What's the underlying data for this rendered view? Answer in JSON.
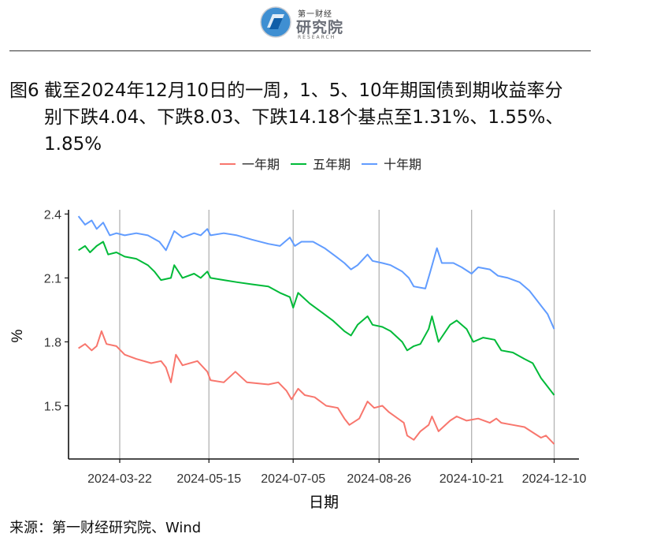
{
  "header": {
    "logo_small": "第一财经",
    "logo_main": "研究院",
    "logo_sub": "RESEARCH"
  },
  "figure": {
    "label": "图6",
    "title_lines": [
      "截至2024年12月10日的一周，1、5、10年期国债到期收益率分",
      "别下跌4.04、下跌8.03、下跌14.18个基点至1.31%、1.55%、",
      "1.85%"
    ]
  },
  "footer": {
    "source": "来源：第一财经研究院、Wind"
  },
  "chart_data": {
    "type": "line",
    "xlabel": "日期",
    "ylabel": "%",
    "ylim": [
      1.25,
      2.42
    ],
    "yticks": [
      "1.5",
      "1.8",
      "2.1",
      "2.4"
    ],
    "xticks": [
      "2024-03-22",
      "2024-05-15",
      "2024-07-05",
      "2024-08-26",
      "2024-10-21",
      "2024-12-10"
    ],
    "xlim": [
      "2024-02-20",
      "2024-12-25"
    ],
    "grid": "vertical major gridlines",
    "legend": "top",
    "series": [
      {
        "name": "一年期",
        "color": "#F8766D",
        "points": [
          [
            "2024-02-26",
            1.77
          ],
          [
            "2024-03-01",
            1.79
          ],
          [
            "2024-03-05",
            1.76
          ],
          [
            "2024-03-08",
            1.78
          ],
          [
            "2024-03-11",
            1.85
          ],
          [
            "2024-03-14",
            1.79
          ],
          [
            "2024-03-20",
            1.78
          ],
          [
            "2024-03-25",
            1.74
          ],
          [
            "2024-04-01",
            1.72
          ],
          [
            "2024-04-10",
            1.7
          ],
          [
            "2024-04-16",
            1.71
          ],
          [
            "2024-04-19",
            1.68
          ],
          [
            "2024-04-22",
            1.61
          ],
          [
            "2024-04-25",
            1.74
          ],
          [
            "2024-04-29",
            1.69
          ],
          [
            "2024-05-08",
            1.71
          ],
          [
            "2024-05-14",
            1.66
          ],
          [
            "2024-05-16",
            1.62
          ],
          [
            "2024-05-24",
            1.61
          ],
          [
            "2024-05-31",
            1.66
          ],
          [
            "2024-06-07",
            1.61
          ],
          [
            "2024-06-20",
            1.6
          ],
          [
            "2024-06-26",
            1.61
          ],
          [
            "2024-07-01",
            1.57
          ],
          [
            "2024-07-04",
            1.53
          ],
          [
            "2024-07-08",
            1.58
          ],
          [
            "2024-07-12",
            1.55
          ],
          [
            "2024-07-18",
            1.54
          ],
          [
            "2024-07-25",
            1.5
          ],
          [
            "2024-08-01",
            1.49
          ],
          [
            "2024-08-05",
            1.44
          ],
          [
            "2024-08-08",
            1.41
          ],
          [
            "2024-08-14",
            1.44
          ],
          [
            "2024-08-19",
            1.52
          ],
          [
            "2024-08-23",
            1.49
          ],
          [
            "2024-08-28",
            1.5
          ],
          [
            "2024-09-01",
            1.47
          ],
          [
            "2024-09-10",
            1.42
          ],
          [
            "2024-09-12",
            1.36
          ],
          [
            "2024-09-16",
            1.34
          ],
          [
            "2024-09-20",
            1.38
          ],
          [
            "2024-09-25",
            1.41
          ],
          [
            "2024-09-27",
            1.45
          ],
          [
            "2024-10-01",
            1.38
          ],
          [
            "2024-10-08",
            1.43
          ],
          [
            "2024-10-12",
            1.45
          ],
          [
            "2024-10-18",
            1.43
          ],
          [
            "2024-10-25",
            1.44
          ],
          [
            "2024-11-01",
            1.42
          ],
          [
            "2024-11-05",
            1.44
          ],
          [
            "2024-11-08",
            1.42
          ],
          [
            "2024-11-15",
            1.41
          ],
          [
            "2024-11-22",
            1.4
          ],
          [
            "2024-11-28",
            1.37
          ],
          [
            "2024-12-02",
            1.35
          ],
          [
            "2024-12-05",
            1.36
          ],
          [
            "2024-12-10",
            1.32
          ]
        ]
      },
      {
        "name": "五年期",
        "color": "#00BA38",
        "points": [
          [
            "2024-02-26",
            2.23
          ],
          [
            "2024-03-01",
            2.25
          ],
          [
            "2024-03-04",
            2.22
          ],
          [
            "2024-03-08",
            2.25
          ],
          [
            "2024-03-12",
            2.27
          ],
          [
            "2024-03-15",
            2.21
          ],
          [
            "2024-03-20",
            2.22
          ],
          [
            "2024-03-25",
            2.2
          ],
          [
            "2024-04-01",
            2.19
          ],
          [
            "2024-04-08",
            2.16
          ],
          [
            "2024-04-12",
            2.13
          ],
          [
            "2024-04-16",
            2.09
          ],
          [
            "2024-04-22",
            2.1
          ],
          [
            "2024-04-24",
            2.16
          ],
          [
            "2024-04-29",
            2.1
          ],
          [
            "2024-05-06",
            2.12
          ],
          [
            "2024-05-10",
            2.1
          ],
          [
            "2024-05-14",
            2.13
          ],
          [
            "2024-05-16",
            2.1
          ],
          [
            "2024-05-24",
            2.09
          ],
          [
            "2024-06-01",
            2.08
          ],
          [
            "2024-06-10",
            2.07
          ],
          [
            "2024-06-20",
            2.06
          ],
          [
            "2024-06-27",
            2.03
          ],
          [
            "2024-07-03",
            2.01
          ],
          [
            "2024-07-05",
            1.96
          ],
          [
            "2024-07-08",
            2.03
          ],
          [
            "2024-07-15",
            1.98
          ],
          [
            "2024-07-22",
            1.94
          ],
          [
            "2024-07-29",
            1.9
          ],
          [
            "2024-08-05",
            1.85
          ],
          [
            "2024-08-09",
            1.83
          ],
          [
            "2024-08-13",
            1.88
          ],
          [
            "2024-08-19",
            1.92
          ],
          [
            "2024-08-22",
            1.88
          ],
          [
            "2024-08-28",
            1.87
          ],
          [
            "2024-09-02",
            1.85
          ],
          [
            "2024-09-09",
            1.8
          ],
          [
            "2024-09-12",
            1.76
          ],
          [
            "2024-09-16",
            1.78
          ],
          [
            "2024-09-20",
            1.79
          ],
          [
            "2024-09-25",
            1.86
          ],
          [
            "2024-09-27",
            1.92
          ],
          [
            "2024-10-01",
            1.8
          ],
          [
            "2024-10-08",
            1.88
          ],
          [
            "2024-10-12",
            1.9
          ],
          [
            "2024-10-18",
            1.86
          ],
          [
            "2024-10-22",
            1.8
          ],
          [
            "2024-10-28",
            1.82
          ],
          [
            "2024-11-04",
            1.81
          ],
          [
            "2024-11-08",
            1.76
          ],
          [
            "2024-11-15",
            1.75
          ],
          [
            "2024-11-22",
            1.72
          ],
          [
            "2024-11-27",
            1.7
          ],
          [
            "2024-12-02",
            1.63
          ],
          [
            "2024-12-05",
            1.6
          ],
          [
            "2024-12-10",
            1.55
          ]
        ]
      },
      {
        "name": "十年期",
        "color": "#619CFF",
        "points": [
          [
            "2024-02-26",
            2.39
          ],
          [
            "2024-03-01",
            2.35
          ],
          [
            "2024-03-05",
            2.37
          ],
          [
            "2024-03-08",
            2.33
          ],
          [
            "2024-03-12",
            2.36
          ],
          [
            "2024-03-16",
            2.3
          ],
          [
            "2024-03-20",
            2.31
          ],
          [
            "2024-03-25",
            2.3
          ],
          [
            "2024-04-01",
            2.31
          ],
          [
            "2024-04-08",
            2.3
          ],
          [
            "2024-04-15",
            2.27
          ],
          [
            "2024-04-19",
            2.23
          ],
          [
            "2024-04-24",
            2.32
          ],
          [
            "2024-04-29",
            2.29
          ],
          [
            "2024-05-06",
            2.31
          ],
          [
            "2024-05-10",
            2.3
          ],
          [
            "2024-05-14",
            2.33
          ],
          [
            "2024-05-16",
            2.3
          ],
          [
            "2024-05-24",
            2.31
          ],
          [
            "2024-06-01",
            2.3
          ],
          [
            "2024-06-10",
            2.28
          ],
          [
            "2024-06-20",
            2.26
          ],
          [
            "2024-06-27",
            2.25
          ],
          [
            "2024-07-03",
            2.29
          ],
          [
            "2024-07-06",
            2.25
          ],
          [
            "2024-07-10",
            2.27
          ],
          [
            "2024-07-17",
            2.27
          ],
          [
            "2024-07-24",
            2.24
          ],
          [
            "2024-07-31",
            2.2
          ],
          [
            "2024-08-05",
            2.17
          ],
          [
            "2024-08-09",
            2.14
          ],
          [
            "2024-08-13",
            2.16
          ],
          [
            "2024-08-19",
            2.21
          ],
          [
            "2024-08-22",
            2.18
          ],
          [
            "2024-08-28",
            2.17
          ],
          [
            "2024-09-02",
            2.16
          ],
          [
            "2024-09-09",
            2.13
          ],
          [
            "2024-09-13",
            2.1
          ],
          [
            "2024-09-16",
            2.06
          ],
          [
            "2024-09-23",
            2.05
          ],
          [
            "2024-09-26",
            2.13
          ],
          [
            "2024-09-30",
            2.24
          ],
          [
            "2024-10-03",
            2.17
          ],
          [
            "2024-10-10",
            2.17
          ],
          [
            "2024-10-15",
            2.15
          ],
          [
            "2024-10-21",
            2.12
          ],
          [
            "2024-10-25",
            2.15
          ],
          [
            "2024-11-01",
            2.14
          ],
          [
            "2024-11-06",
            2.11
          ],
          [
            "2024-11-12",
            2.1
          ],
          [
            "2024-11-19",
            2.08
          ],
          [
            "2024-11-25",
            2.04
          ],
          [
            "2024-11-29",
            2.0
          ],
          [
            "2024-12-03",
            1.96
          ],
          [
            "2024-12-06",
            1.93
          ],
          [
            "2024-12-10",
            1.86
          ]
        ]
      }
    ]
  }
}
